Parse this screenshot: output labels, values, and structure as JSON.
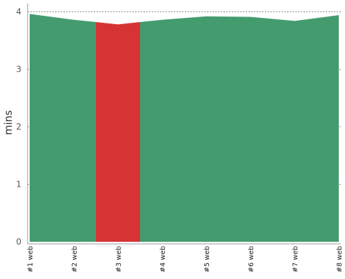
{
  "chart_data": {
    "type": "area",
    "title": "",
    "xlabel": "",
    "ylabel": "mins",
    "ylim": [
      0,
      4
    ],
    "yticks": [
      0,
      1,
      2,
      3,
      4
    ],
    "grid": true,
    "categories": [
      "#1 web",
      "#2 web",
      "#3 web",
      "#4 web",
      "#5 web",
      "#6 web",
      "#7 web",
      "#8 web"
    ],
    "values": [
      3.96,
      3.86,
      3.78,
      3.86,
      3.92,
      3.91,
      3.84,
      3.94
    ],
    "highlight_category": "#3 web",
    "colors": {
      "area": "#449c6e",
      "highlight": "#d63434",
      "grid": "#777777",
      "axis": "#999999"
    }
  }
}
